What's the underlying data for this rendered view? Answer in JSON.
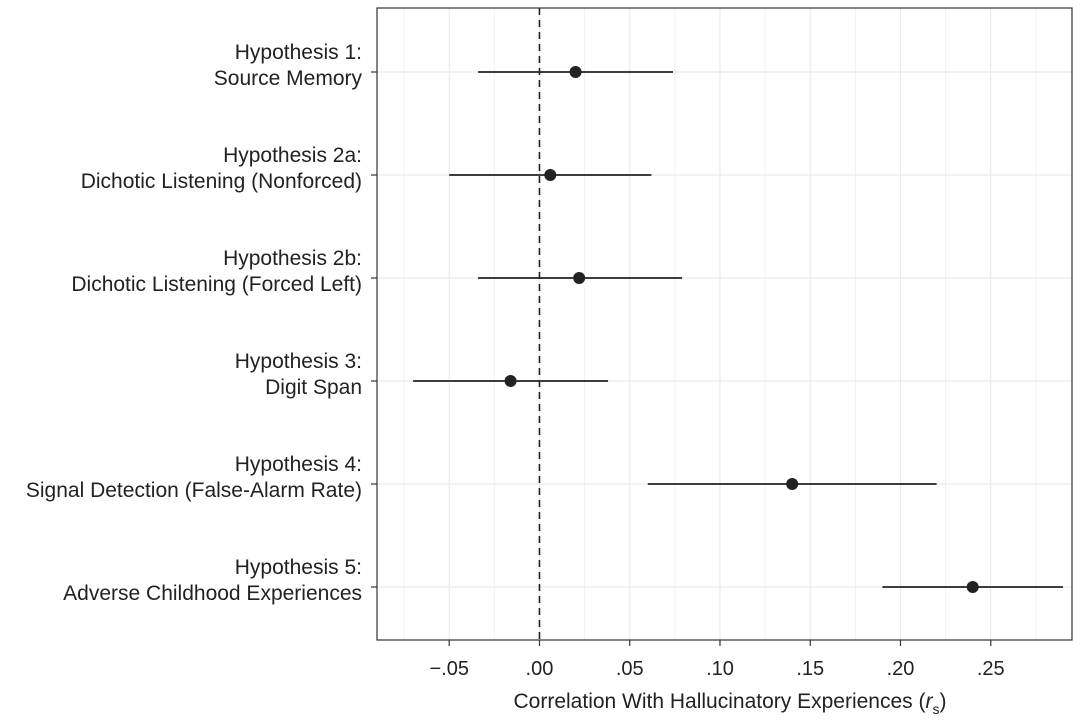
{
  "chart_data": {
    "type": "forest",
    "xlabel_prefix": "Correlation With Hallucinatory Experiences (",
    "xlabel_var": "r",
    "xlabel_sub": "s",
    "xlabel_suffix": ")",
    "xlim": [
      -0.09,
      0.295
    ],
    "xticks": [
      -0.05,
      0.0,
      0.05,
      0.1,
      0.15,
      0.2,
      0.25
    ],
    "xtick_labels": [
      "−.05",
      ".00",
      ".05",
      ".10",
      ".15",
      ".20",
      ".25"
    ],
    "reference_line": 0.0,
    "grid": true,
    "categories": [
      {
        "line1": "Hypothesis 1:",
        "line2": "Source Memory",
        "estimate": 0.02,
        "ci_low": -0.034,
        "ci_high": 0.074
      },
      {
        "line1": "Hypothesis 2a:",
        "line2": "Dichotic Listening (Nonforced)",
        "estimate": 0.006,
        "ci_low": -0.05,
        "ci_high": 0.062
      },
      {
        "line1": "Hypothesis 2b:",
        "line2": "Dichotic Listening (Forced Left)",
        "estimate": 0.022,
        "ci_low": -0.034,
        "ci_high": 0.079
      },
      {
        "line1": "Hypothesis 3:",
        "line2": "Digit Span",
        "estimate": -0.016,
        "ci_low": -0.07,
        "ci_high": 0.038
      },
      {
        "line1": "Hypothesis 4:",
        "line2": "Signal Detection (False-Alarm Rate)",
        "estimate": 0.14,
        "ci_low": 0.06,
        "ci_high": 0.22
      },
      {
        "line1": "Hypothesis 5:",
        "line2": "Adverse Childhood Experiences",
        "estimate": 0.24,
        "ci_low": 0.19,
        "ci_high": 0.29
      }
    ]
  }
}
